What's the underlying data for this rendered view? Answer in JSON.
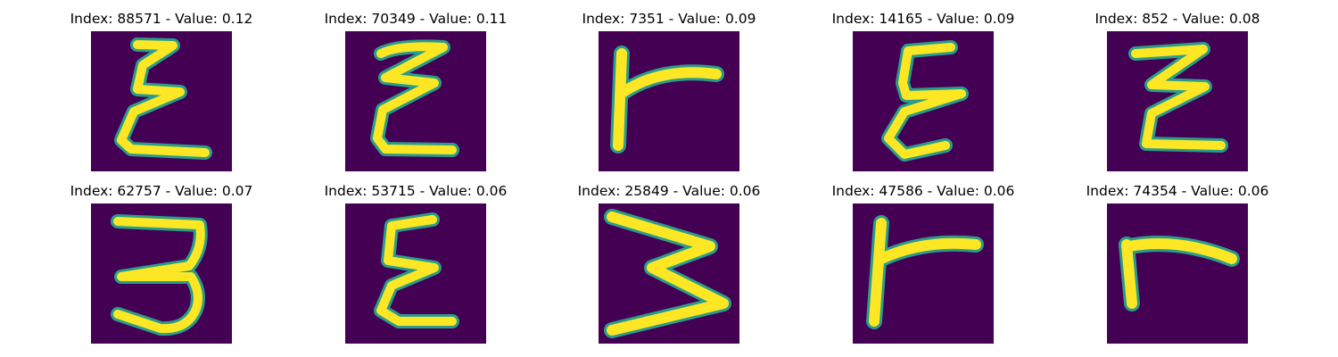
{
  "colors": {
    "background": "#440154",
    "stroke": "#fde725",
    "edge": "#2a9d8a"
  },
  "glyph_icons": [
    "epsilon-letter-icon",
    "epsilon-letter-icon",
    "r-letter-icon",
    "epsilon-letter-icon",
    "z-letter-icon",
    "three-letter-icon",
    "epsilon-letter-icon",
    "w-letter-icon",
    "r-letter-icon",
    "r-letter-icon"
  ],
  "panels": [
    {
      "title": "Index: 88571 - Value: 0.12"
    },
    {
      "title": "Index: 70349 - Value: 0.11"
    },
    {
      "title": "Index: 7351 - Value: 0.09"
    },
    {
      "title": "Index: 14165 - Value: 0.09"
    },
    {
      "title": "Index: 852 - Value: 0.08"
    },
    {
      "title": "Index: 62757 - Value: 0.07"
    },
    {
      "title": "Index: 53715 - Value: 0.06"
    },
    {
      "title": "Index: 25849 - Value: 0.06"
    },
    {
      "title": "Index: 47586 - Value: 0.06"
    },
    {
      "title": "Index: 74354 - Value: 0.06"
    }
  ]
}
